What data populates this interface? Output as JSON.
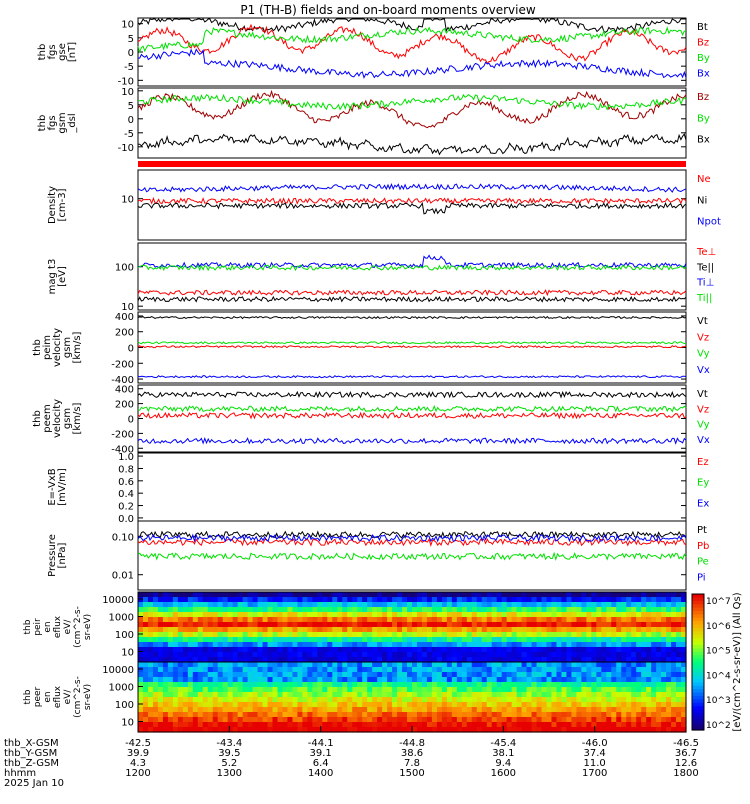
{
  "title": "P1 (TH-B) fields and on-board moments overview",
  "colors": {
    "black": "#000000",
    "red": "#ff0000",
    "green": "#00e000",
    "blue": "#0000ff",
    "darkred": "#a00000"
  },
  "chart_data": {
    "type": "line",
    "title": "P1 (TH-B) fields and on-board moments overview",
    "panels": [
      {
        "id": "fgs-gse",
        "ylabel_lines": [
          "thb",
          "fgs",
          "gse",
          "[nT]"
        ],
        "yscale": "linear",
        "ylim": [
          -12,
          12
        ],
        "ticks": [
          "10",
          "5",
          "0",
          "-5",
          "-10"
        ],
        "tick_values": [
          10,
          5,
          0,
          -5,
          -10
        ],
        "series": [
          {
            "name": "Bt",
            "color": "#000000"
          },
          {
            "name": "Bz",
            "color": "#ff0000"
          },
          {
            "name": "By",
            "color": "#00e000"
          },
          {
            "name": "Bx",
            "color": "#0000ff"
          }
        ]
      },
      {
        "id": "fgs-gsm",
        "ylabel_lines": [
          "thb",
          "fgs",
          "gsm",
          "_dsl"
        ],
        "yscale": "linear",
        "ylim": [
          -14,
          11
        ],
        "ticks": [
          "10",
          "5",
          "0",
          "-5",
          "-10"
        ],
        "tick_values": [
          10,
          5,
          0,
          -5,
          -10
        ],
        "series": [
          {
            "name": "Bz",
            "color": "#a00000"
          },
          {
            "name": "By",
            "color": "#00e000"
          },
          {
            "name": "Bx",
            "color": "#000000"
          }
        ]
      },
      {
        "id": "density",
        "ylabel_lines": [
          "Density",
          "[cm-3]"
        ],
        "yscale": "log",
        "ylim": [
          0.5,
          80
        ],
        "ticks": [
          "10"
        ],
        "tick_values": [
          10
        ],
        "series": [
          {
            "name": "Ne",
            "color": "#ff0000"
          },
          {
            "name": "Ni",
            "color": "#000000"
          },
          {
            "name": "Npot",
            "color": "#0000ff"
          }
        ]
      },
      {
        "id": "temp",
        "ylabel_lines": [
          "mag t3",
          "[eV]"
        ],
        "yscale": "log",
        "ylim": [
          8,
          400
        ],
        "ticks": [
          "100",
          "10"
        ],
        "tick_values": [
          100,
          10
        ],
        "series": [
          {
            "name": "Te⊥",
            "color": "#ff0000"
          },
          {
            "name": "Te||",
            "color": "#000000"
          },
          {
            "name": "Ti⊥",
            "color": "#0000ff"
          },
          {
            "name": "Ti||",
            "color": "#00e000"
          }
        ]
      },
      {
        "id": "peim-vel",
        "ylabel_lines": [
          "thb",
          "peim",
          "velocity",
          "gsm",
          "[km/s]"
        ],
        "yscale": "linear",
        "ylim": [
          -450,
          450
        ],
        "ticks": [
          "400",
          "200",
          "0",
          "-200",
          "-400"
        ],
        "tick_values": [
          400,
          200,
          0,
          -200,
          -400
        ],
        "series": [
          {
            "name": "Vt",
            "color": "#000000"
          },
          {
            "name": "Vz",
            "color": "#ff0000"
          },
          {
            "name": "Vy",
            "color": "#00e000"
          },
          {
            "name": "Vx",
            "color": "#0000ff"
          }
        ]
      },
      {
        "id": "peem-vel",
        "ylabel_lines": [
          "thb",
          "peem",
          "velocity",
          "gsm",
          "[km/s]"
        ],
        "yscale": "linear",
        "ylim": [
          -450,
          450
        ],
        "ticks": [
          "400",
          "200",
          "0",
          "-200",
          "-400"
        ],
        "tick_values": [
          400,
          200,
          0,
          -200,
          -400
        ],
        "series": [
          {
            "name": "Vt",
            "color": "#000000"
          },
          {
            "name": "Vz",
            "color": "#ff0000"
          },
          {
            "name": "Vy",
            "color": "#00e000"
          },
          {
            "name": "Vx",
            "color": "#0000ff"
          }
        ]
      },
      {
        "id": "efield",
        "ylabel_lines": [
          "E=-VxB",
          "[mV/m]"
        ],
        "yscale": "linear",
        "ylim": [
          -0.05,
          1.05
        ],
        "ticks": [
          "1.0",
          "0.8",
          "0.6",
          "0.4",
          "0.2",
          "0.0"
        ],
        "tick_values": [
          1.0,
          0.8,
          0.6,
          0.4,
          0.2,
          0.0
        ],
        "series": [
          {
            "name": "Ez",
            "color": "#ff0000"
          },
          {
            "name": "Ey",
            "color": "#00e000"
          },
          {
            "name": "Ex",
            "color": "#0000ff"
          }
        ]
      },
      {
        "id": "pressure",
        "ylabel_lines": [
          "Pressure",
          "[nPa]"
        ],
        "yscale": "log",
        "ylim": [
          0.004,
          0.25
        ],
        "ticks": [
          "0.10",
          "0.01"
        ],
        "tick_values": [
          0.1,
          0.01
        ],
        "series": [
          {
            "name": "Pt",
            "color": "#000000"
          },
          {
            "name": "Pb",
            "color": "#ff0000"
          },
          {
            "name": "Pe",
            "color": "#00e000"
          },
          {
            "name": "Pi",
            "color": "#0000ff"
          }
        ]
      }
    ],
    "spectrograms": [
      {
        "id": "peir-eflux",
        "ylabel_lines": [
          "thb",
          "peir",
          "en",
          "eflux",
          "eV/",
          "(cm^2-s-",
          "sr-eV)"
        ],
        "yscale": "log",
        "ticks": [
          "10000",
          "1000",
          "100",
          "10"
        ],
        "tick_values": [
          10000,
          1000,
          100,
          10
        ]
      },
      {
        "id": "peer-eflux",
        "ylabel_lines": [
          "thb",
          "peer",
          "en",
          "eflux",
          "eV/",
          "(cm^2-s-",
          "sr-eV)"
        ],
        "yscale": "log",
        "ticks": [
          "10000",
          "1000",
          "100",
          "10"
        ],
        "tick_values": [
          10000,
          1000,
          100,
          10
        ]
      }
    ],
    "colorbar": {
      "ticks": [
        "10^7",
        "10^6",
        "10^5",
        "10^4",
        "10^3",
        "10^2"
      ],
      "label": "[eV/(cm^2-s-sr-eV)] (All Qs)"
    },
    "xaxis": {
      "row_labels": [
        "thb_X-GSM",
        "thb_Y-GSM",
        "thb_Z-GSM",
        "hhmm",
        "2025 Jan 10"
      ],
      "columns": [
        {
          "x": "-42.5",
          "y": "39.9",
          "z": "4.3",
          "hhmm": "1200"
        },
        {
          "x": "-43.4",
          "y": "39.5",
          "z": "5.2",
          "hhmm": "1300"
        },
        {
          "x": "-44.1",
          "y": "39.1",
          "z": "6.4",
          "hhmm": "1400"
        },
        {
          "x": "-44.8",
          "y": "38.6",
          "z": "7.8",
          "hhmm": "1500"
        },
        {
          "x": "-45.4",
          "y": "38.1",
          "z": "9.4",
          "hhmm": "1600"
        },
        {
          "x": "-46.0",
          "y": "37.4",
          "z": "11.0",
          "hhmm": "1700"
        },
        {
          "x": "-46.5",
          "y": "36.7",
          "z": "12.6",
          "hhmm": "1800"
        }
      ]
    }
  }
}
